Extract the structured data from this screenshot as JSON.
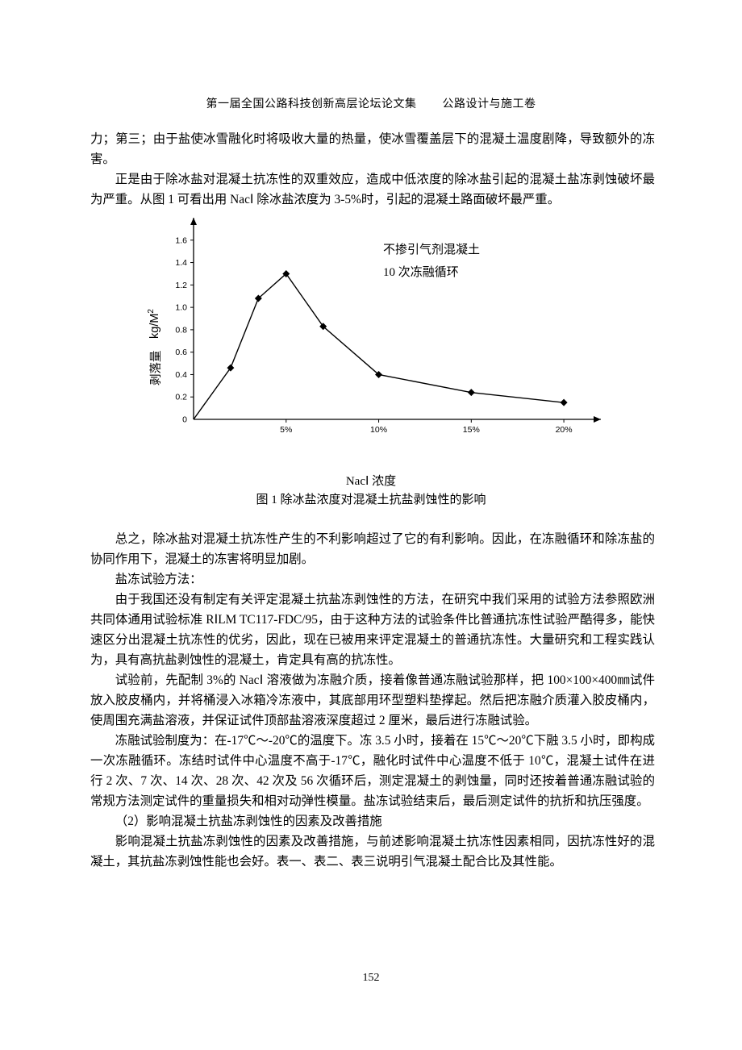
{
  "header": {
    "left": "第一届全国公路科技创新高层论坛论文集",
    "right": "公路设计与施工卷"
  },
  "paragraphs": {
    "p1": "力；第三；由于盐使冰雪融化时将吸收大量的热量，使冰雪覆盖层下的混凝土温度剧降，导致额外的冻害。",
    "p2": "正是由于除冰盐对混凝土抗冻性的双重效应，造成中低浓度的除冰盐引起的混凝土盐冻剥蚀破坏最为严重。从图 1 可看出用 NacⅠ 除冰盐浓度为 3-5%时，引起的混凝土路面破坏最严重。",
    "p3": "总之，除冰盐对混凝土抗冻性产生的不利影响超过了它的有利影响。因此，在冻融循环和除冻盐的协同作用下，混凝土的冻害将明显加剧。",
    "p4": "盐冻试验方法：",
    "p5": "由于我国还没有制定有关评定混凝土抗盐冻剥蚀性的方法，在研究中我们采用的试验方法参照欧洲共同体通用试验标准 RⅠLM  TC117-FDC/95，由于这种方法的试验条件比普通抗冻性试验严酷得多，能快速区分出混凝土抗冻性的优劣，因此，现在已被用来评定混凝土的普通抗冻性。大量研究和工程实践认为，具有高抗盐剥蚀性的混凝土，肯定具有高的抗冻性。",
    "p6": "试验前，先配制 3%的 NacⅠ 溶液做为冻融介质，接着像普通冻融试验那样，把 100×100×400㎜试件放入胶皮桶内，并将桶浸入冰箱冷冻液中，其底部用环型塑料垫撑起。然后把冻融介质灌入胶皮桶内，使周围充满盐溶液，并保证试件顶部盐溶液深度超过 2 厘米，最后进行冻融试验。",
    "p7": "冻融试验制度为：在-17℃～-20℃的温度下。冻 3.5 小时，接着在 15℃～20℃下融 3.5 小时，即构成一次冻融循环。冻结时试件中心温度不高于-17℃，融化时试件中心温度不低于 10℃，混凝土试件在进行 2 次、7 次、14 次、28 次、42 次及 56 次循环后，测定混凝土的剥蚀量，同时还按着普通冻融试验的常规方法测定试件的重量损失和相对动弹性模量。盐冻试验结束后，最后测定试件的抗折和抗压强度。",
    "p8": "（2）影响混凝土抗盐冻剥蚀性的因素及改善措施",
    "p9": "影响混凝土抗盐冻剥蚀性的因素及改善措施，与前述影响混凝土抗冻性因素相同，因抗冻性好的混凝土，其抗盐冻剥蚀性能也会好。表一、表二、表三说明引气混凝土配合比及其性能。"
  },
  "chart": {
    "type": "line",
    "title_annot_1": "不掺引气剂混凝土",
    "title_annot_2": "10 次冻融循环",
    "x_label": "NacⅠ 浓度",
    "y_label_main": "剥落量",
    "y_label_unit": "kg/M",
    "y_label_sup": "2",
    "fig_caption": "图 1 除冰盐浓度对混凝土抗盐剥蚀性的影响",
    "x_ticks": [
      "5%",
      "10%",
      "15%",
      "20%"
    ],
    "x_tick_positions": [
      5,
      10,
      15,
      20
    ],
    "y_ticks": [
      "0",
      "0.2",
      "0.4",
      "0.6",
      "0.8",
      "1.0",
      "1.2",
      "1.4",
      "1.6"
    ],
    "y_tick_values": [
      0,
      0.2,
      0.4,
      0.6,
      0.8,
      1.0,
      1.2,
      1.4,
      1.6
    ],
    "xlim": [
      0,
      22
    ],
    "ylim": [
      0,
      1.8
    ],
    "data_points": [
      {
        "x": 0,
        "y": 0
      },
      {
        "x": 2,
        "y": 0.46
      },
      {
        "x": 3.5,
        "y": 1.08
      },
      {
        "x": 5,
        "y": 1.3
      },
      {
        "x": 7,
        "y": 0.83
      },
      {
        "x": 10,
        "y": 0.4
      },
      {
        "x": 15,
        "y": 0.24
      },
      {
        "x": 20,
        "y": 0.15
      }
    ],
    "line_color": "#000000",
    "line_width": 1.4,
    "marker": "diamond",
    "marker_size": 4.5,
    "marker_fill": "#000000",
    "axis_color": "#000000",
    "axis_width": 1.3,
    "background_color": "#ffffff",
    "tick_fontsize": 10.5,
    "annotation_fontsize": 15
  },
  "page_number": "152"
}
